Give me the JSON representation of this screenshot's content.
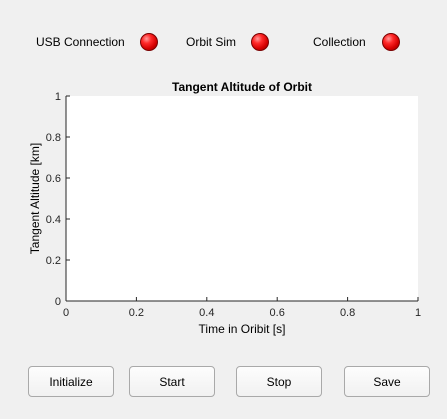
{
  "status": {
    "usb_label": "USB Connection",
    "orbit_label": "Orbit Sim",
    "collection_label": "Collection",
    "lamp_color": "#e00000"
  },
  "buttons": {
    "initialize": "Initialize",
    "start": "Start",
    "stop": "Stop",
    "save": "Save"
  },
  "chart_data": {
    "type": "line",
    "title": "Tangent Altitude of Orbit",
    "xlabel": "Time in Oribit [s]",
    "ylabel": "Tangent Altitude [km]",
    "xlim": [
      0,
      1
    ],
    "ylim": [
      0,
      1
    ],
    "xticks": [
      "0",
      "0.2",
      "0.4",
      "0.6",
      "0.8",
      "1"
    ],
    "yticks": [
      "0",
      "0.2",
      "0.4",
      "0.6",
      "0.8",
      "1"
    ],
    "grid": false,
    "series": []
  }
}
